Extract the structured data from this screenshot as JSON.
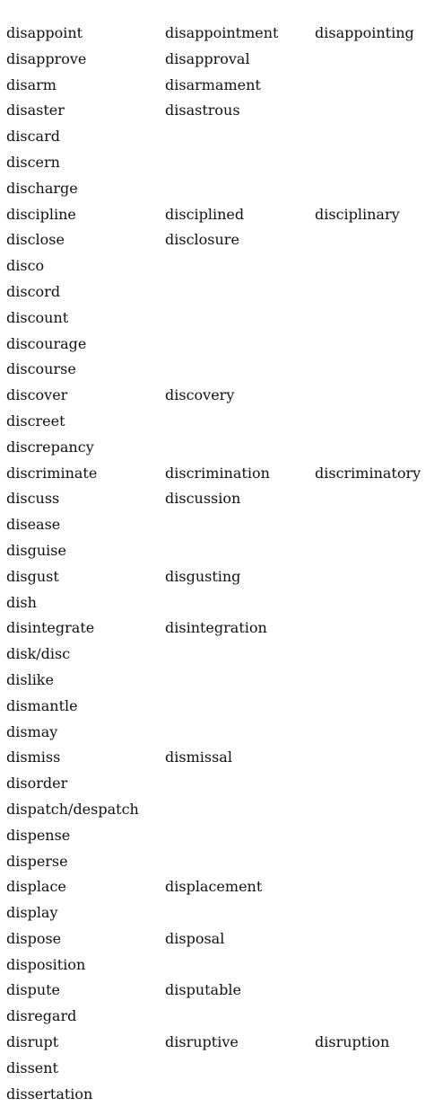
{
  "rows": [
    [
      "disappoint",
      "disappointment",
      "disappointing"
    ],
    [
      "disapprove",
      "disapproval",
      ""
    ],
    [
      "disarm",
      "disarmament",
      ""
    ],
    [
      "disaster",
      "disastrous",
      ""
    ],
    [
      "discard",
      "",
      ""
    ],
    [
      "discern",
      "",
      ""
    ],
    [
      "discharge",
      "",
      ""
    ],
    [
      "discipline",
      "disciplined",
      "disciplinary"
    ],
    [
      "disclose",
      "disclosure",
      ""
    ],
    [
      "disco",
      "",
      ""
    ],
    [
      "discord",
      "",
      ""
    ],
    [
      "discount",
      "",
      ""
    ],
    [
      "discourage",
      "",
      ""
    ],
    [
      "discourse",
      "",
      ""
    ],
    [
      "discover",
      "discovery",
      ""
    ],
    [
      "discreet",
      "",
      ""
    ],
    [
      "discrepancy",
      "",
      ""
    ],
    [
      "discriminate",
      "discrimination",
      "discriminatory"
    ],
    [
      "discuss",
      "discussion",
      ""
    ],
    [
      "disease",
      "",
      ""
    ],
    [
      "disguise",
      "",
      ""
    ],
    [
      "disgust",
      "disgusting",
      ""
    ],
    [
      "dish",
      "",
      ""
    ],
    [
      "disintegrate",
      "disintegration",
      ""
    ],
    [
      "disk/disc",
      "",
      ""
    ],
    [
      "dislike",
      "",
      ""
    ],
    [
      "dismantle",
      "",
      ""
    ],
    [
      "dismay",
      "",
      ""
    ],
    [
      "dismiss",
      "dismissal",
      ""
    ],
    [
      "disorder",
      "",
      ""
    ],
    [
      "dispatch/despatch",
      "",
      ""
    ],
    [
      "dispense",
      "",
      ""
    ],
    [
      "disperse",
      "",
      ""
    ],
    [
      "displace",
      "displacement",
      ""
    ],
    [
      "display",
      "",
      ""
    ],
    [
      "dispose",
      "disposal",
      ""
    ],
    [
      "disposition",
      "",
      ""
    ],
    [
      "dispute",
      "disputable",
      ""
    ],
    [
      "disregard",
      "",
      ""
    ],
    [
      "disrupt",
      "disruptive",
      "disruption"
    ],
    [
      "dissent",
      "",
      ""
    ],
    [
      "dissertation",
      "",
      ""
    ]
  ]
}
